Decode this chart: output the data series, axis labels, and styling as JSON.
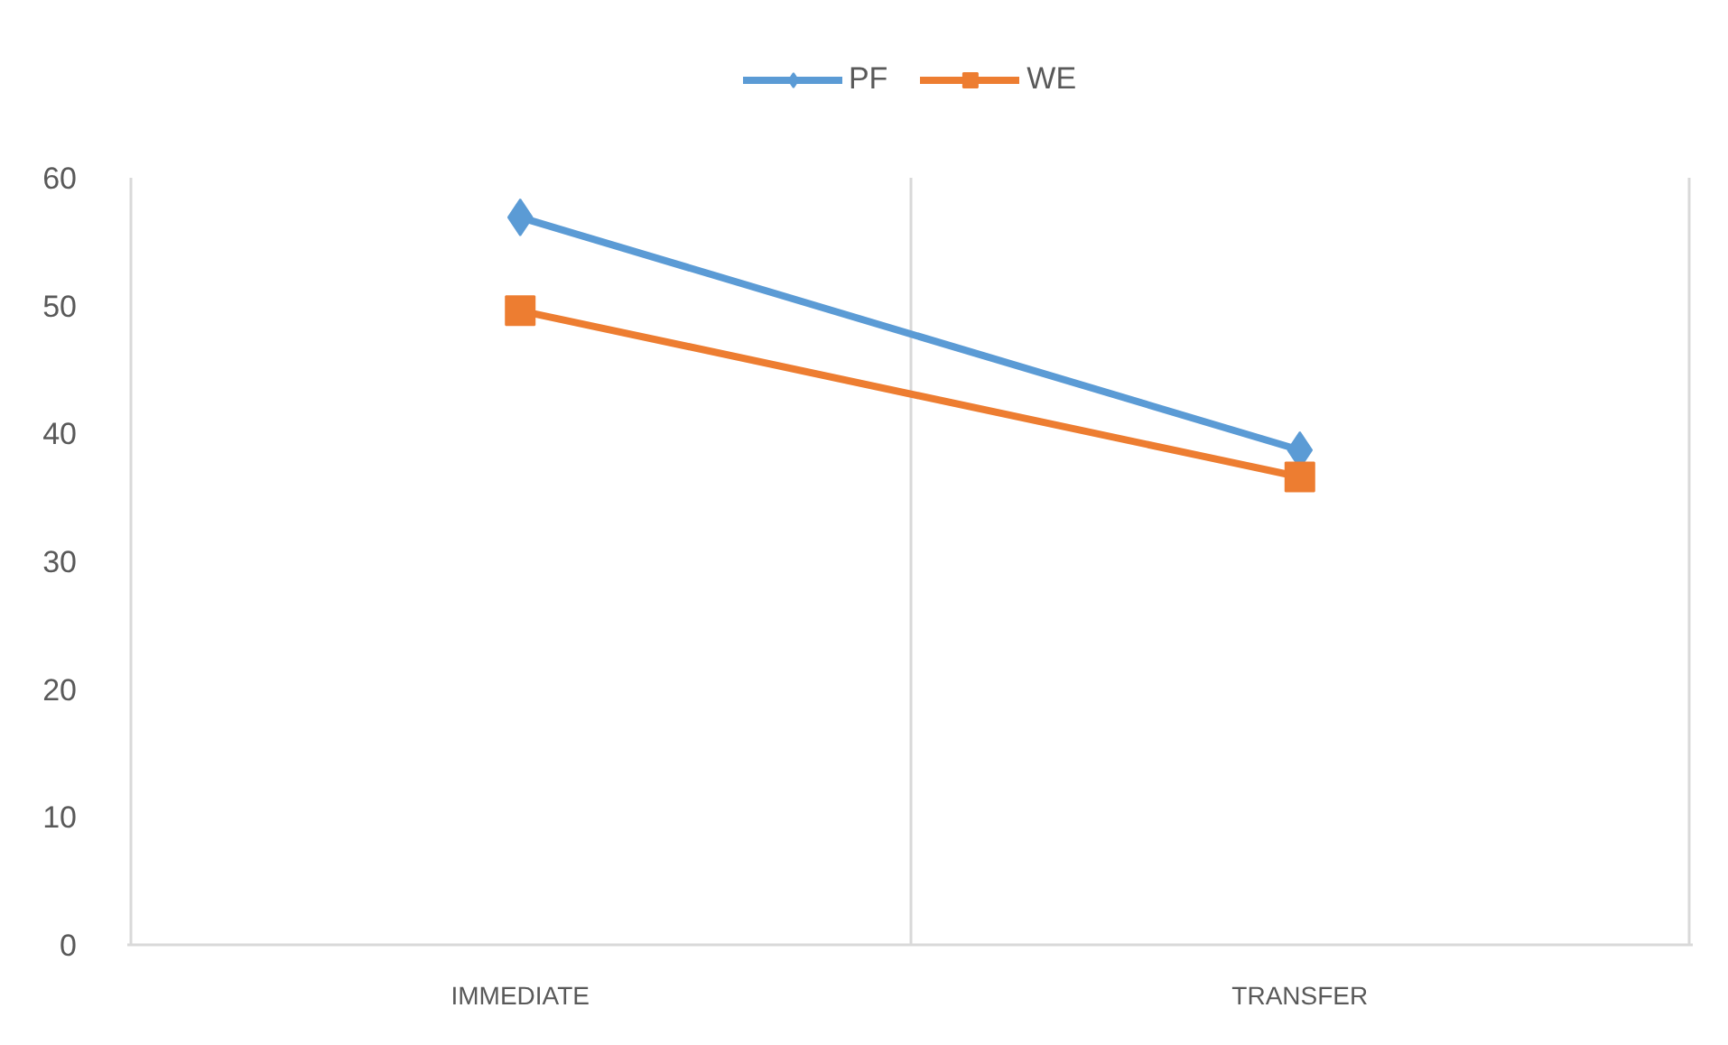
{
  "chart_data": {
    "type": "line",
    "categories": [
      "IMMEDIATE",
      "TRANSFER"
    ],
    "series": [
      {
        "name": "PF",
        "color": "#5b9bd5",
        "marker": "diamond",
        "values": [
          56.9,
          38.7
        ]
      },
      {
        "name": "WE",
        "color": "#ed7d31",
        "marker": "square",
        "values": [
          49.6,
          36.6
        ]
      }
    ],
    "ylim": [
      0,
      60
    ],
    "yticks": [
      0,
      10,
      20,
      30,
      40,
      50,
      60
    ],
    "grid": "x",
    "legend": "top"
  }
}
